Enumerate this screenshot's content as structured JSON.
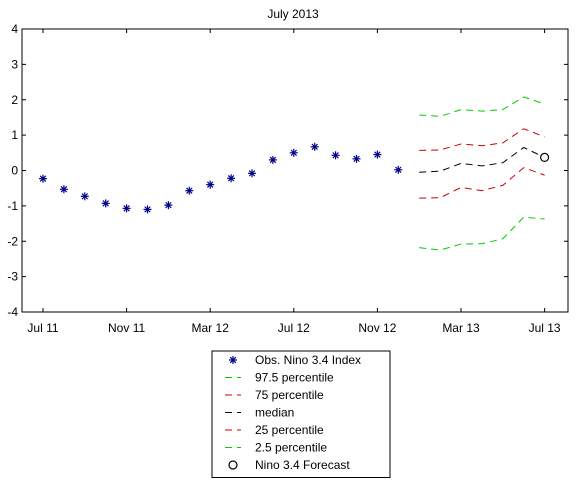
{
  "chart_data": {
    "type": "line",
    "title": "July      2013",
    "xlabel": "",
    "ylabel": "",
    "ylim": [
      -4,
      4
    ],
    "y_ticks": [
      "4",
      "3",
      "2",
      "1",
      "0",
      "-1",
      "-2",
      "-3",
      "-4"
    ],
    "x_ticks": [
      "Jul 11",
      "Nov 11",
      "Mar 12",
      "Jul 12",
      "Nov 12",
      "Mar 13",
      "Jul 13"
    ],
    "grid": false,
    "legend_position": "below",
    "colors": {
      "observed": "#00008b",
      "p97_5": "#00cc00",
      "p75": "#cc0000",
      "median": "#000000",
      "p25": "#cc0000",
      "p2_5": "#00cc00",
      "forecast": "#000000"
    },
    "observed": {
      "name": "Obs. Nino 3.4 Index",
      "x": [
        "Jul 11",
        "Aug 11",
        "Sep 11",
        "Oct 11",
        "Nov 11",
        "Dec 11",
        "Jan 12",
        "Feb 12",
        "Mar 12",
        "Apr 12",
        "May 12",
        "Jun 12",
        "Jul 12",
        "Aug 12",
        "Sep 12",
        "Oct 12",
        "Nov 12",
        "Dec 12"
      ],
      "values": [
        -0.23,
        -0.53,
        -0.73,
        -0.93,
        -1.07,
        -1.1,
        -0.98,
        -0.57,
        -0.4,
        -0.22,
        -0.08,
        0.3,
        0.5,
        0.67,
        0.43,
        0.33,
        0.45,
        0.02
      ]
    },
    "forecast_months": [
      "Jan 13",
      "Feb 13",
      "Mar 13",
      "Apr 13",
      "May 13",
      "Jun 13",
      "Jul 13"
    ],
    "series": [
      {
        "name": "97.5 percentile",
        "color_key": "p97_5",
        "values": [
          1.57,
          1.53,
          1.72,
          1.68,
          1.72,
          2.08,
          1.88
        ]
      },
      {
        "name": "75 percentile",
        "color_key": "p75",
        "values": [
          0.57,
          0.58,
          0.75,
          0.7,
          0.78,
          1.18,
          0.95
        ]
      },
      {
        "name": "median",
        "color_key": "median",
        "values": [
          -0.05,
          -0.02,
          0.2,
          0.13,
          0.22,
          0.65,
          0.37
        ]
      },
      {
        "name": "25 percentile",
        "color_key": "p25",
        "values": [
          -0.78,
          -0.77,
          -0.48,
          -0.57,
          -0.42,
          0.08,
          -0.13
        ]
      },
      {
        "name": "2.5 percentile",
        "color_key": "p2_5",
        "values": [
          -2.18,
          -2.25,
          -2.08,
          -2.07,
          -1.93,
          -1.32,
          -1.37
        ]
      }
    ],
    "forecast": {
      "name": "Nino 3.4 Forecast",
      "x": "Jul 13",
      "value": 0.37
    }
  }
}
